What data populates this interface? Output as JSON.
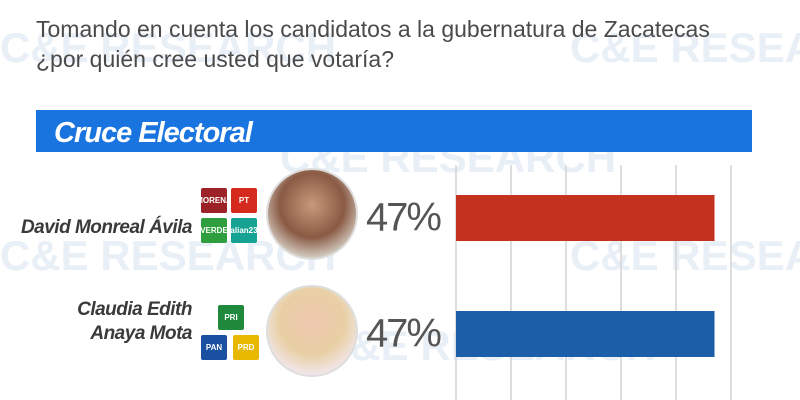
{
  "chart_data": {
    "type": "hbar",
    "title": "Tomando en cuenta los candidatos a la gubernatura de Zacatecas ¿por quién cree usted que votaría?",
    "subtitle": "Cruce Electoral",
    "categories": [
      "David Monreal Ávila",
      "Claudia Edith Anaya Mota"
    ],
    "series": [
      {
        "values": [
          47,
          47
        ],
        "value_labels": [
          "47%",
          "47%"
        ],
        "colors": [
          "#c4321f",
          "#1c5ea8"
        ]
      }
    ],
    "xlim": [
      0,
      50
    ],
    "xticks": [
      0,
      10,
      20,
      30,
      40,
      50
    ],
    "grid": true
  },
  "watermark": "C&E RESEARCH",
  "logos": [
    [
      {
        "label": "MORENA",
        "color": "#9b2226"
      },
      {
        "label": "PT",
        "color": "#d52b1e"
      },
      {
        "label": "VERDE",
        "color": "#2e9e3e"
      },
      {
        "label": "alian23",
        "color": "#17a394"
      }
    ],
    [
      {
        "label": "PRI",
        "color": "#1f8a3c"
      },
      {
        "label": "PAN",
        "color": "#1b4fa0"
      },
      {
        "label": "PRD",
        "color": "#e8b800"
      }
    ]
  ]
}
